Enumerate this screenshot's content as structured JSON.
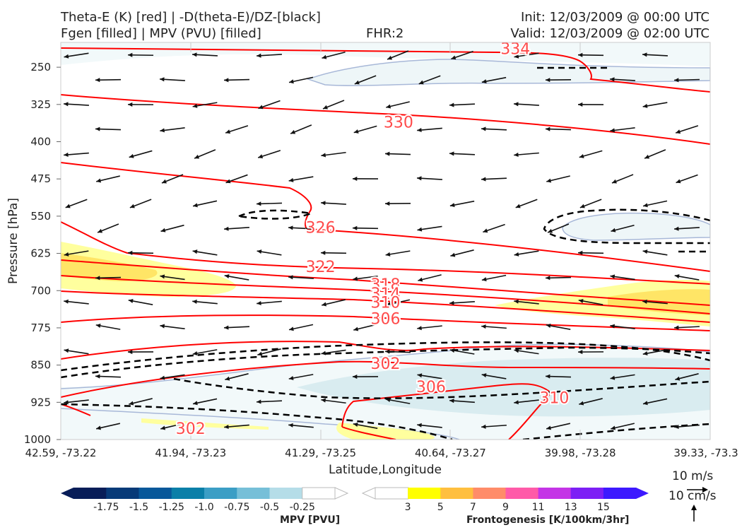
{
  "header": {
    "title_left_1": "Theta-E (K) [red] | -D(theta-E)/DZ-[black]",
    "title_left_2": "Fgen [filled] | MPV (PVU) [filled]",
    "fhr": "FHR:2",
    "init": "Init: 12/03/2009 @ 00:00 UTC",
    "valid": "Valid: 12/03/2009 @ 02:00 UTC"
  },
  "colors": {
    "theta_e": "#ff0000",
    "dthetae_dz": "#000000",
    "mpv_fill": [
      "#081d58",
      "#073a78",
      "#08589a",
      "#0a7fa8",
      "#3b9ec5",
      "#76bfd8",
      "#b5dde8",
      "#ffffff"
    ],
    "fgen_fill": [
      "#ffffff",
      "#ffff00",
      "#ffbf3f",
      "#ff8c69",
      "#ff5aa8",
      "#c434e6",
      "#7d1ff5",
      "#3d19ff"
    ]
  },
  "chart_data": {
    "type": "contour-cross-section",
    "xlabel": "Latitude,Longitude",
    "ylabel": "Pressure [hPa]",
    "x_ticks": [
      "42.59, -73.22",
      "41.94, -73.23",
      "41.29, -73.25",
      "40.64, -73.27",
      "39.98, -73.28",
      "39.33, -73.3"
    ],
    "y_ticks": [
      250,
      325,
      400,
      475,
      550,
      625,
      700,
      775,
      850,
      925,
      1000
    ],
    "ylim": [
      1000,
      200
    ],
    "theta_e_labels": [
      {
        "value": "334",
        "x_frac": 0.7,
        "p": 212
      },
      {
        "value": "330",
        "x_frac": 0.52,
        "p": 360
      },
      {
        "value": "326",
        "x_frac": 0.4,
        "p": 572
      },
      {
        "value": "322",
        "x_frac": 0.4,
        "p": 651
      },
      {
        "value": "318",
        "x_frac": 0.5,
        "p": 687
      },
      {
        "value": "314",
        "x_frac": 0.5,
        "p": 705
      },
      {
        "value": "310",
        "x_frac": 0.5,
        "p": 723
      },
      {
        "value": "306",
        "x_frac": 0.5,
        "p": 756
      },
      {
        "value": "302",
        "x_frac": 0.5,
        "p": 846
      },
      {
        "value": "306",
        "x_frac": 0.57,
        "p": 893
      },
      {
        "value": "310",
        "x_frac": 0.76,
        "p": 915
      },
      {
        "value": "302",
        "x_frac": 0.2,
        "p": 977
      }
    ],
    "mpv_colorbar": {
      "title": "MPV [PVU]",
      "ticks": [
        "-1.75",
        "-1.5",
        "-1.25",
        "-1.0",
        "-0.75",
        "-0.5",
        "-0.25"
      ]
    },
    "fgen_colorbar": {
      "title": "Frontogenesis [K/100km/3hr]",
      "ticks": [
        "3",
        "5",
        "7",
        "9",
        "11",
        "13",
        "15"
      ]
    },
    "vector_key": {
      "horizontal": "10 m/s",
      "vertical": "10 cm/s"
    }
  }
}
